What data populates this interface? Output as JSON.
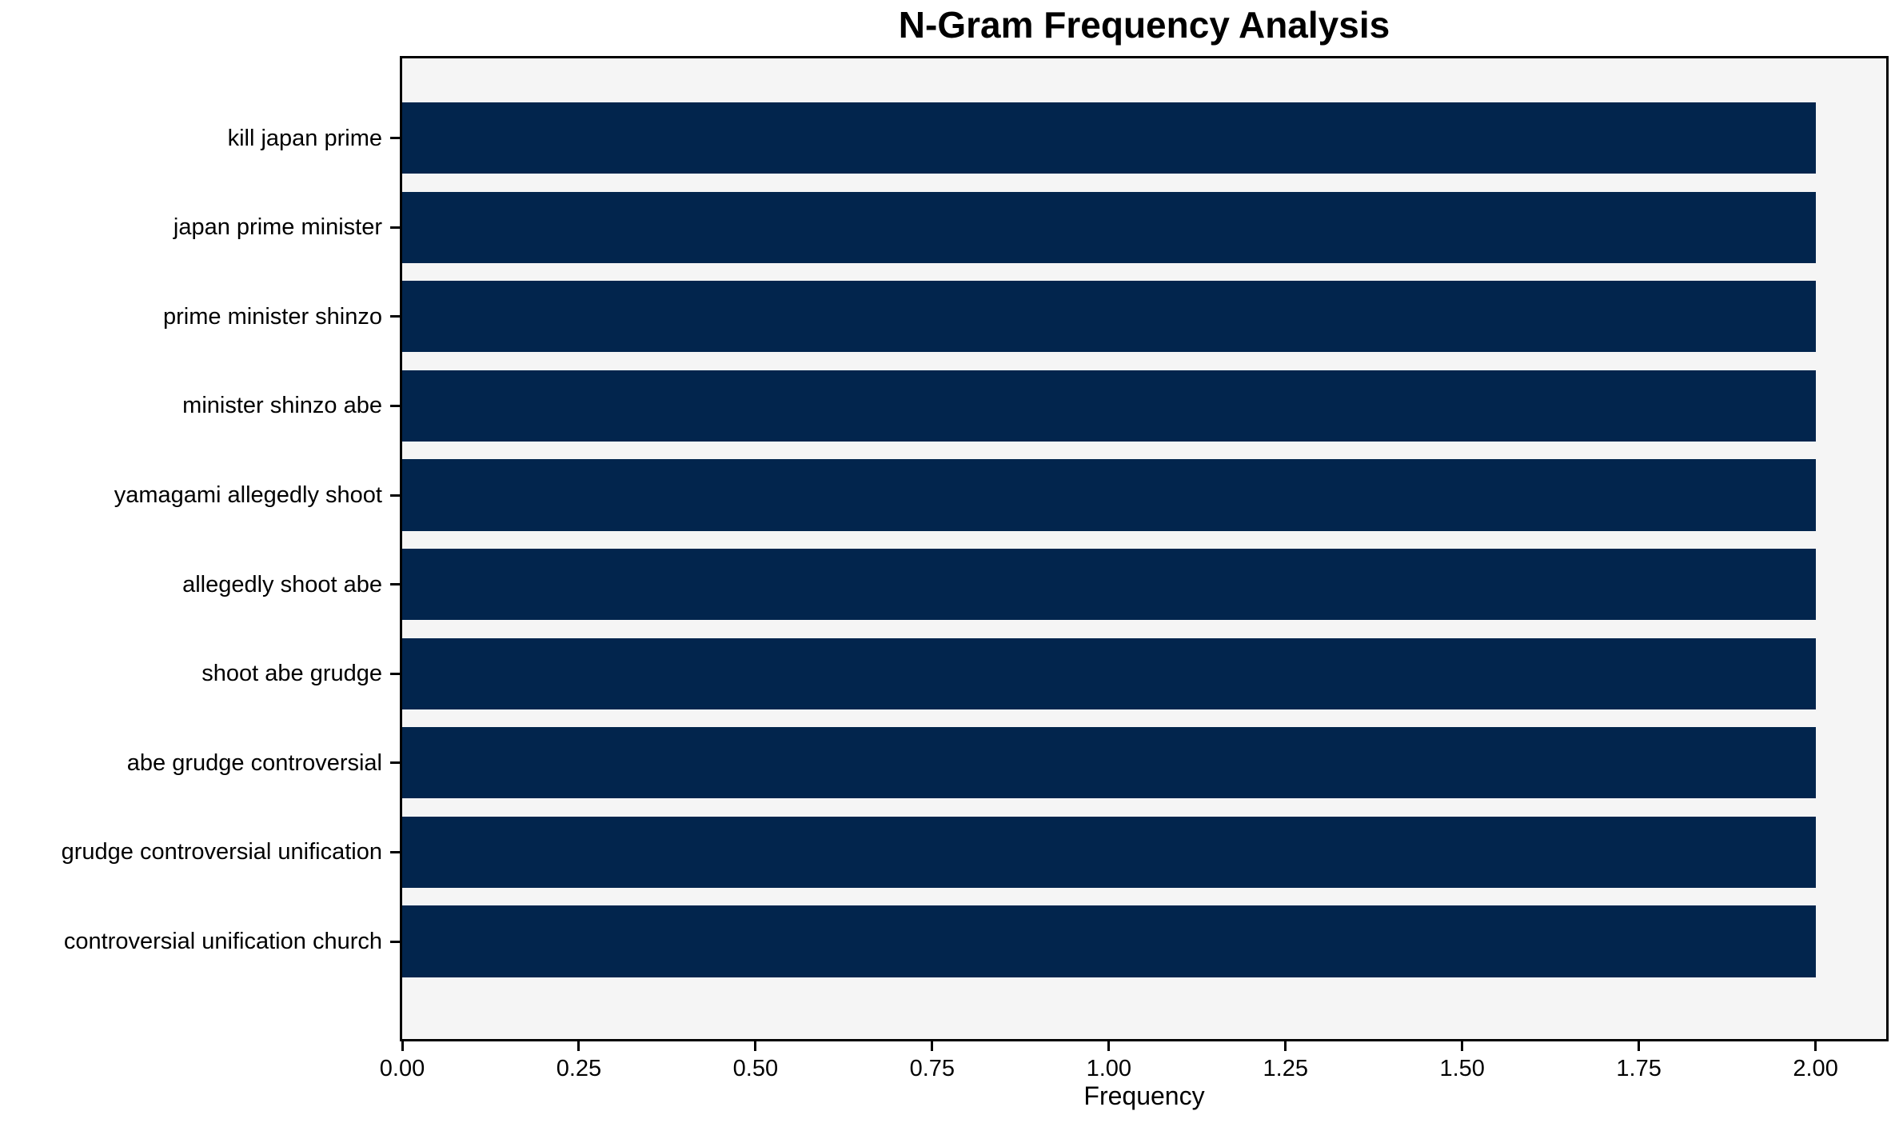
{
  "title": "N-Gram Frequency Analysis",
  "chart_data": {
    "type": "bar",
    "orientation": "horizontal",
    "title": "N-Gram Frequency Analysis",
    "xlabel": "Frequency",
    "ylabel": "",
    "categories": [
      "kill japan prime",
      "japan prime minister",
      "prime minister shinzo",
      "minister shinzo abe",
      "yamagami allegedly shoot",
      "allegedly shoot abe",
      "shoot abe grudge",
      "abe grudge controversial",
      "grudge controversial unification",
      "controversial unification church"
    ],
    "values": [
      2,
      2,
      2,
      2,
      2,
      2,
      2,
      2,
      2,
      2
    ],
    "xlim": [
      0,
      2.1
    ],
    "xticks": [
      0.0,
      0.25,
      0.5,
      0.75,
      1.0,
      1.25,
      1.5,
      1.75,
      2.0
    ],
    "xtick_labels": [
      "0.00",
      "0.25",
      "0.50",
      "0.75",
      "1.00",
      "1.25",
      "1.50",
      "1.75",
      "2.00"
    ],
    "grid": false,
    "legend_position": "none",
    "bar_height_fraction": 0.8,
    "colors": {
      "bar": "#02254d",
      "plot_background": "#f5f5f5",
      "figure_background": "#ffffff",
      "frame": "#000000",
      "text": "#000000"
    }
  }
}
